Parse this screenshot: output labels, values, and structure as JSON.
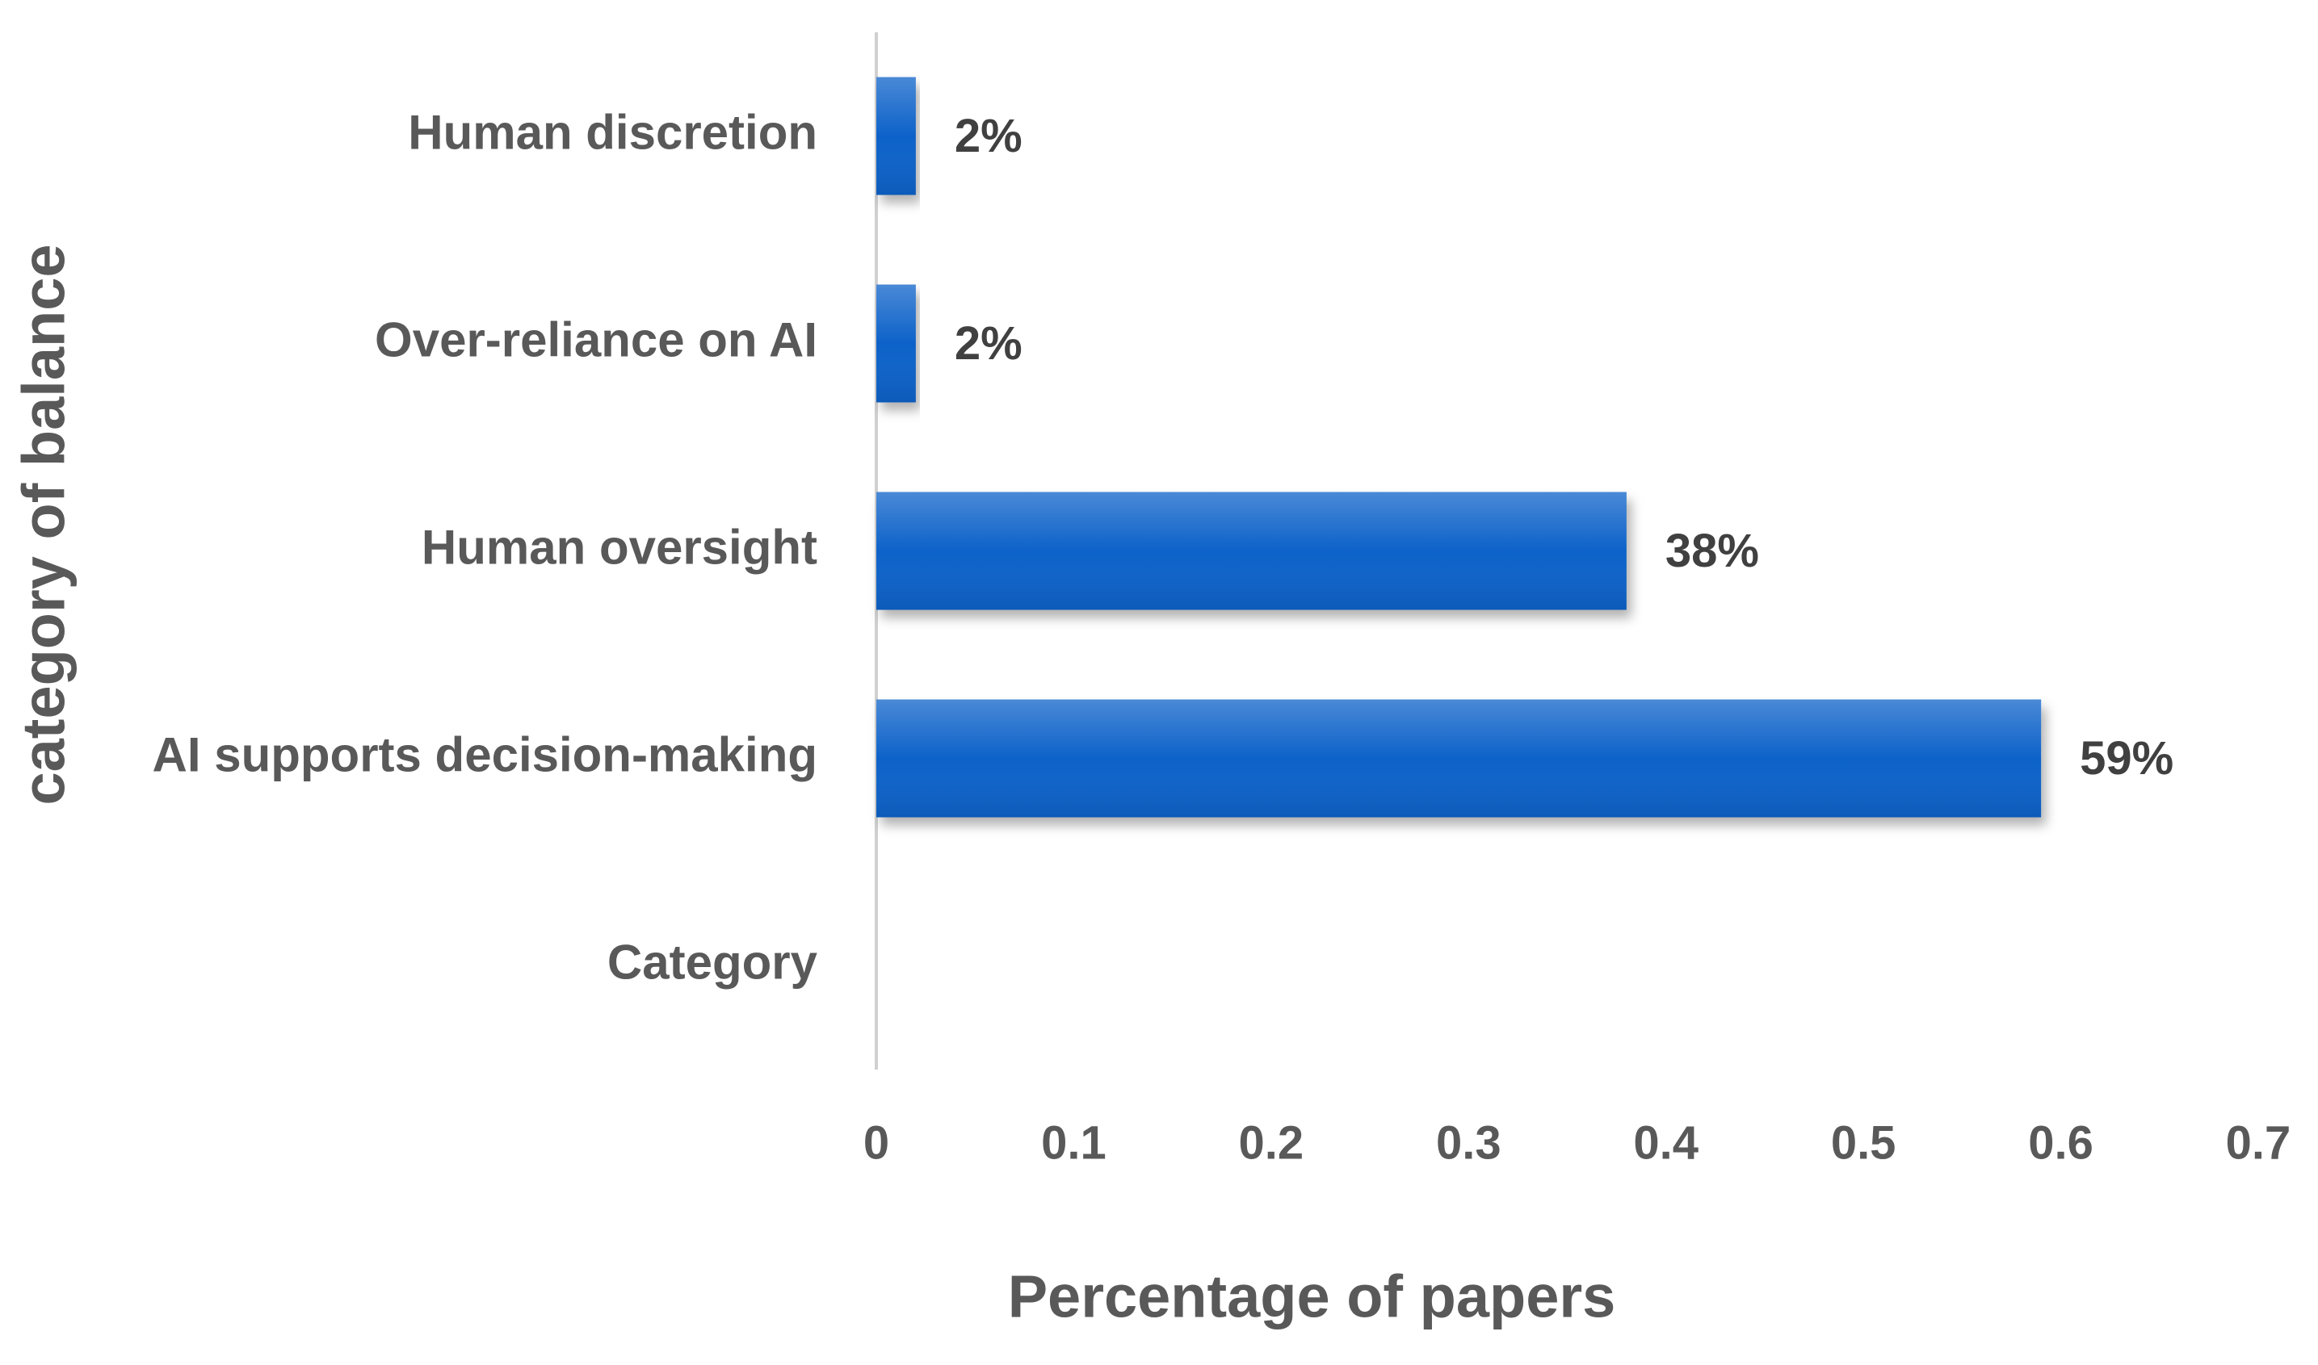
{
  "chart_data": {
    "type": "bar",
    "orientation": "horizontal",
    "x_label": "Percentage of papers",
    "y_label": "category of balance",
    "categories": [
      "Human discretion",
      "Over-reliance on AI",
      "Human oversight",
      "AI supports decision-making",
      "Category"
    ],
    "values": [
      0.02,
      0.02,
      0.38,
      0.59,
      null
    ],
    "value_labels": [
      "2%",
      "2%",
      "38%",
      "59%",
      null
    ],
    "color": "#0a62c9",
    "xlim": [
      0,
      0.7
    ],
    "xticks": [
      0,
      0.1,
      0.2,
      0.3,
      0.4,
      0.5,
      0.6,
      0.7
    ]
  }
}
